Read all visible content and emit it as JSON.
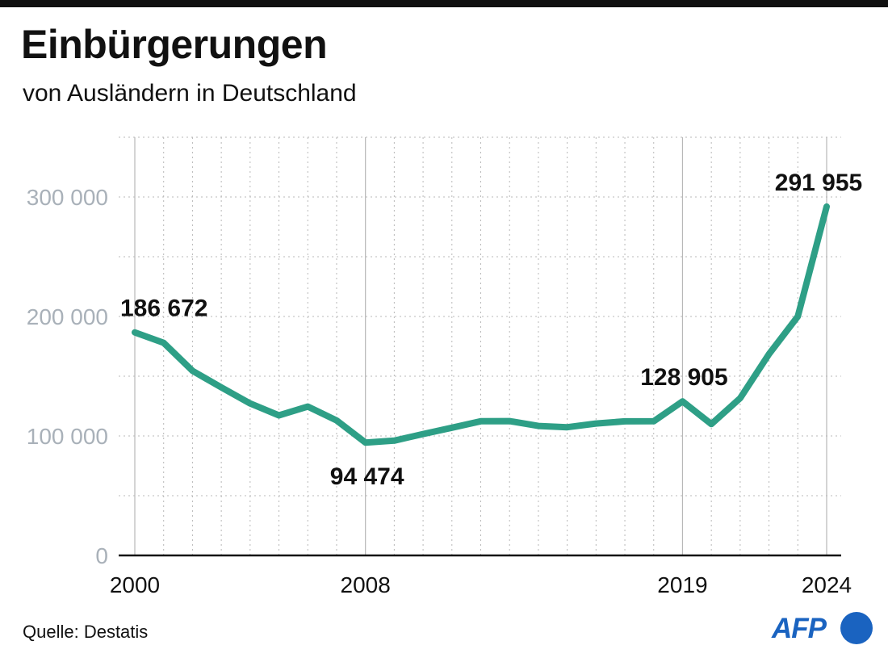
{
  "chart_data": {
    "type": "line",
    "title": "Einbürgerungen",
    "subtitle": "von Ausländern in Deutschland",
    "xlabel": "",
    "ylabel": "",
    "x": [
      2000,
      2001,
      2002,
      2003,
      2004,
      2005,
      2006,
      2007,
      2008,
      2009,
      2010,
      2011,
      2012,
      2013,
      2014,
      2015,
      2016,
      2017,
      2018,
      2019,
      2020,
      2021,
      2022,
      2023,
      2024
    ],
    "series": [
      {
        "name": "Einbürgerungen",
        "color": "#2e9f86",
        "values": [
          186672,
          178000,
          154500,
          140700,
          127200,
          117200,
          124600,
          113000,
          94474,
          96100,
          101600,
          106900,
          112300,
          112400,
          108400,
          107300,
          110400,
          112200,
          112300,
          128905,
          109900,
          131600,
          168500,
          200100,
          291955
        ]
      }
    ],
    "xlim": [
      2000,
      2024
    ],
    "ylim": [
      0,
      350000
    ],
    "y_ticks": [
      0,
      100000,
      200000,
      300000
    ],
    "y_tick_labels": [
      "0",
      "100 000",
      "200 000",
      "300 000"
    ],
    "x_ticks": [
      2000,
      2008,
      2019,
      2024
    ],
    "x_tick_labels": [
      "2000",
      "2008",
      "2019",
      "2024"
    ],
    "annotations": [
      {
        "x": 2000,
        "value": 186672,
        "label": "186 672",
        "placement": "above"
      },
      {
        "x": 2008,
        "value": 94474,
        "label": "94 474",
        "placement": "below"
      },
      {
        "x": 2019,
        "value": 128905,
        "label": "128 905",
        "placement": "above"
      },
      {
        "x": 2024,
        "value": 291955,
        "label": "291 955",
        "placement": "above"
      }
    ],
    "grid": true,
    "colors": {
      "line": "#2e9f86",
      "grid": "#b8b8b8",
      "tick_label": "#a9b1b9",
      "axis": "#111111"
    }
  },
  "footer": {
    "source": "Quelle: Destatis",
    "logo_text": "AFP",
    "logo_color": "#1a63c0"
  }
}
